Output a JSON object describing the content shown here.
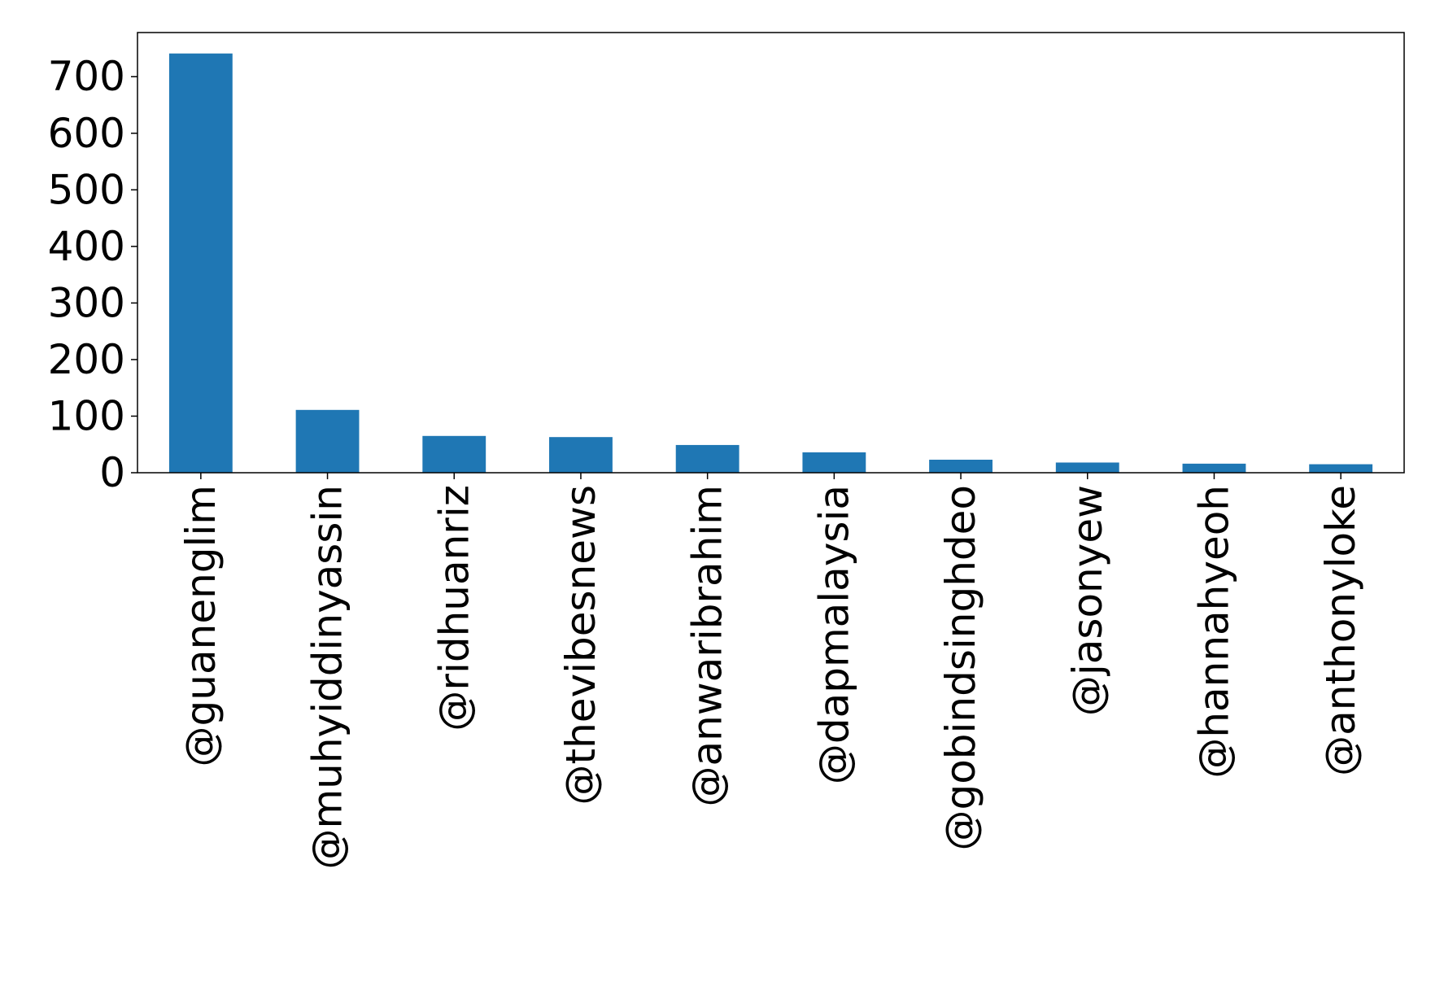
{
  "chart_data": {
    "type": "bar",
    "categories": [
      "@guanenglim",
      "@muhyiddinyassin",
      "@ridhuanriz",
      "@thevibesnews",
      "@anwaribrahim",
      "@dapmalaysia",
      "@gobindsinghdeo",
      "@jasonyew",
      "@hannahyeoh",
      "@anthonyloke"
    ],
    "values": [
      741,
      111,
      65,
      63,
      49,
      36,
      23,
      18,
      16,
      15
    ],
    "yticks": [
      0,
      100,
      200,
      300,
      400,
      500,
      600,
      700
    ],
    "ylim": [
      0,
      778
    ],
    "grid": false,
    "legend": "none",
    "bar_color": "#1f77b4"
  }
}
